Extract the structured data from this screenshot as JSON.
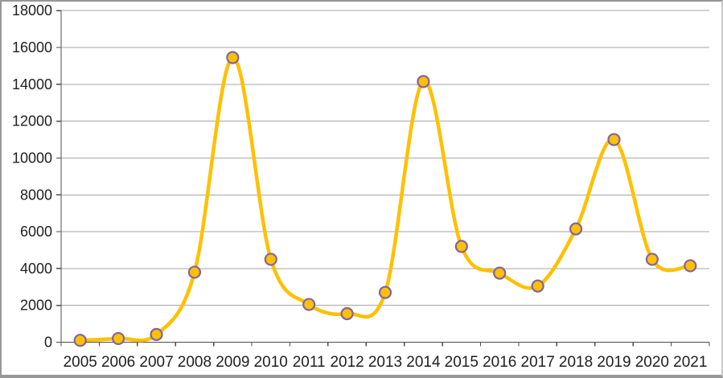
{
  "chart_data": {
    "type": "line",
    "title": "",
    "xlabel": "",
    "ylabel": "",
    "categories": [
      "2005",
      "2006",
      "2007",
      "2008",
      "2009",
      "2010",
      "2011",
      "2012",
      "2013",
      "2014",
      "2015",
      "2016",
      "2017",
      "2018",
      "2019",
      "2020",
      "2021"
    ],
    "values": [
      100,
      200,
      420,
      3800,
      15450,
      4500,
      2050,
      1550,
      2700,
      14150,
      5200,
      3750,
      3050,
      6150,
      11000,
      4500,
      4150
    ],
    "ylim": [
      0,
      18000
    ],
    "ytick_step": 2000,
    "ytick_labels": [
      "0",
      "2000",
      "4000",
      "6000",
      "8000",
      "10000",
      "12000",
      "14000",
      "16000",
      "18000"
    ],
    "grid": true,
    "legend": "none",
    "smooth_line": true,
    "style": {
      "line_color": "#FFC000",
      "line_width": 4.5,
      "marker_fill": "#FFC000",
      "marker_border": "#8064A2",
      "marker_radius": 7,
      "marker_border_width": 2.2,
      "gridline_color": "#A6A6A6",
      "axis_color": "#4d4d4d",
      "tick_label_color": "#1f1f1f",
      "background": "#FFFFFF",
      "frame_border_color": "#979797"
    }
  }
}
